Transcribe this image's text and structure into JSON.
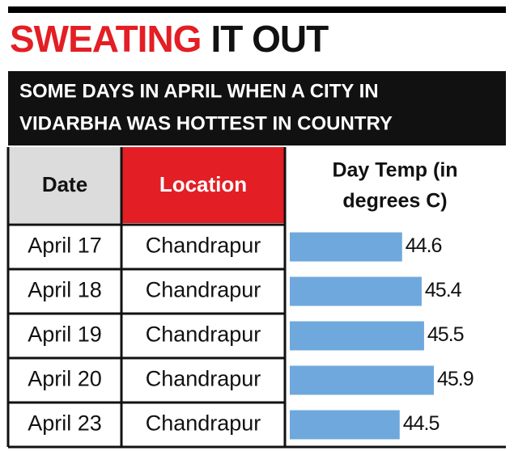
{
  "chart_data": {
    "type": "bar",
    "title_highlight": "SWEATING",
    "title": "IT OUT",
    "subtitle": [
      "SOME DAYS IN APRIL WHEN A CITY IN",
      "VIDARBHA WAS HOTTEST IN COUNTRY"
    ],
    "columns": [
      "Date",
      "Location"
    ],
    "value_header": [
      "Day Temp (in",
      "degrees C)"
    ],
    "categories": [
      "April 17",
      "April 18",
      "April 19",
      "April 20",
      "April 23"
    ],
    "locations": [
      "Chandrapur",
      "Chandrapur",
      "Chandrapur",
      "Chandrapur",
      "Chandrapur"
    ],
    "values": [
      44.6,
      45.4,
      45.5,
      45.9,
      44.5
    ],
    "color": "#6fa8dc",
    "xlim": [
      40,
      46
    ]
  }
}
